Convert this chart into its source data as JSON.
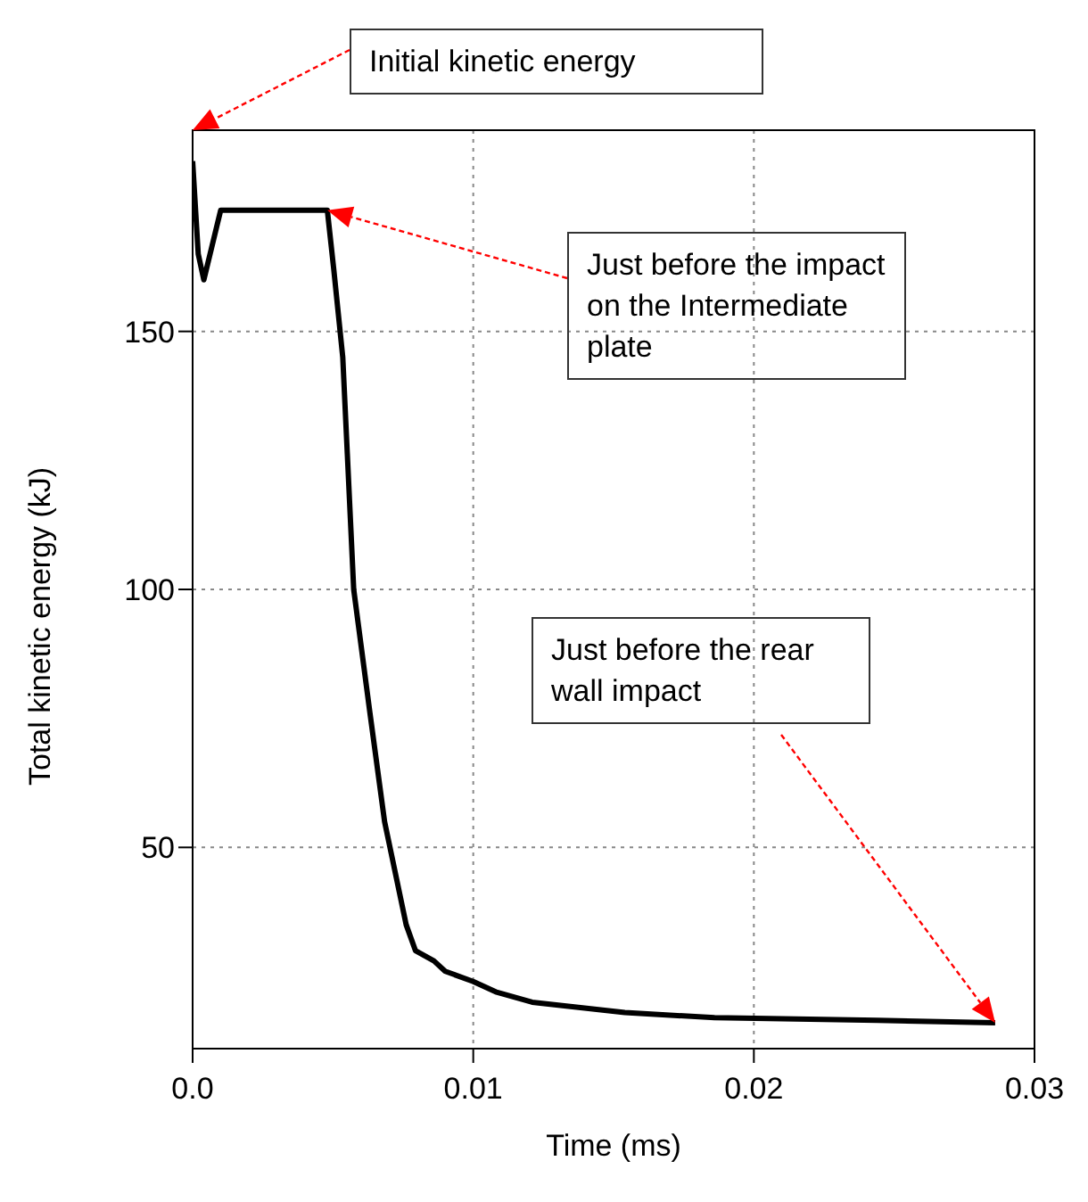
{
  "chart_data": {
    "type": "line",
    "xlabel": "Time (ms)",
    "ylabel": "Total kinetic energy (kJ)",
    "x": [
      0,
      0.0002,
      0.0004,
      0.001,
      0.003,
      0.0048,
      0.00503,
      0.00535,
      0.00574,
      0.00632,
      0.00684,
      0.00761,
      0.00794,
      0.0086,
      0.009,
      0.01,
      0.0108,
      0.0121,
      0.0154,
      0.0186,
      0.0244,
      0.0286
    ],
    "series": [
      {
        "color": "#000000",
        "values": [
          183,
          165,
          160,
          173.5,
          173.5,
          173.5,
          162,
          145,
          100,
          76,
          55,
          35,
          30,
          28,
          26,
          24,
          22,
          20,
          18,
          17,
          16.5,
          16
        ]
      }
    ],
    "xlim": [
      0,
      0.03
    ],
    "xticks": [
      {
        "value": 0,
        "label": "0.0"
      },
      0.01,
      0.02,
      0.03
    ],
    "ylim": [
      11,
      189
    ],
    "yticks": [
      50,
      100,
      150
    ],
    "grid": true,
    "marker": "none",
    "line_style": "solid",
    "legend": false,
    "annotations": [
      "Initial kinetic energy",
      "Just before the impact on the Intermediate plate",
      "Just before the rear wall impact"
    ]
  }
}
